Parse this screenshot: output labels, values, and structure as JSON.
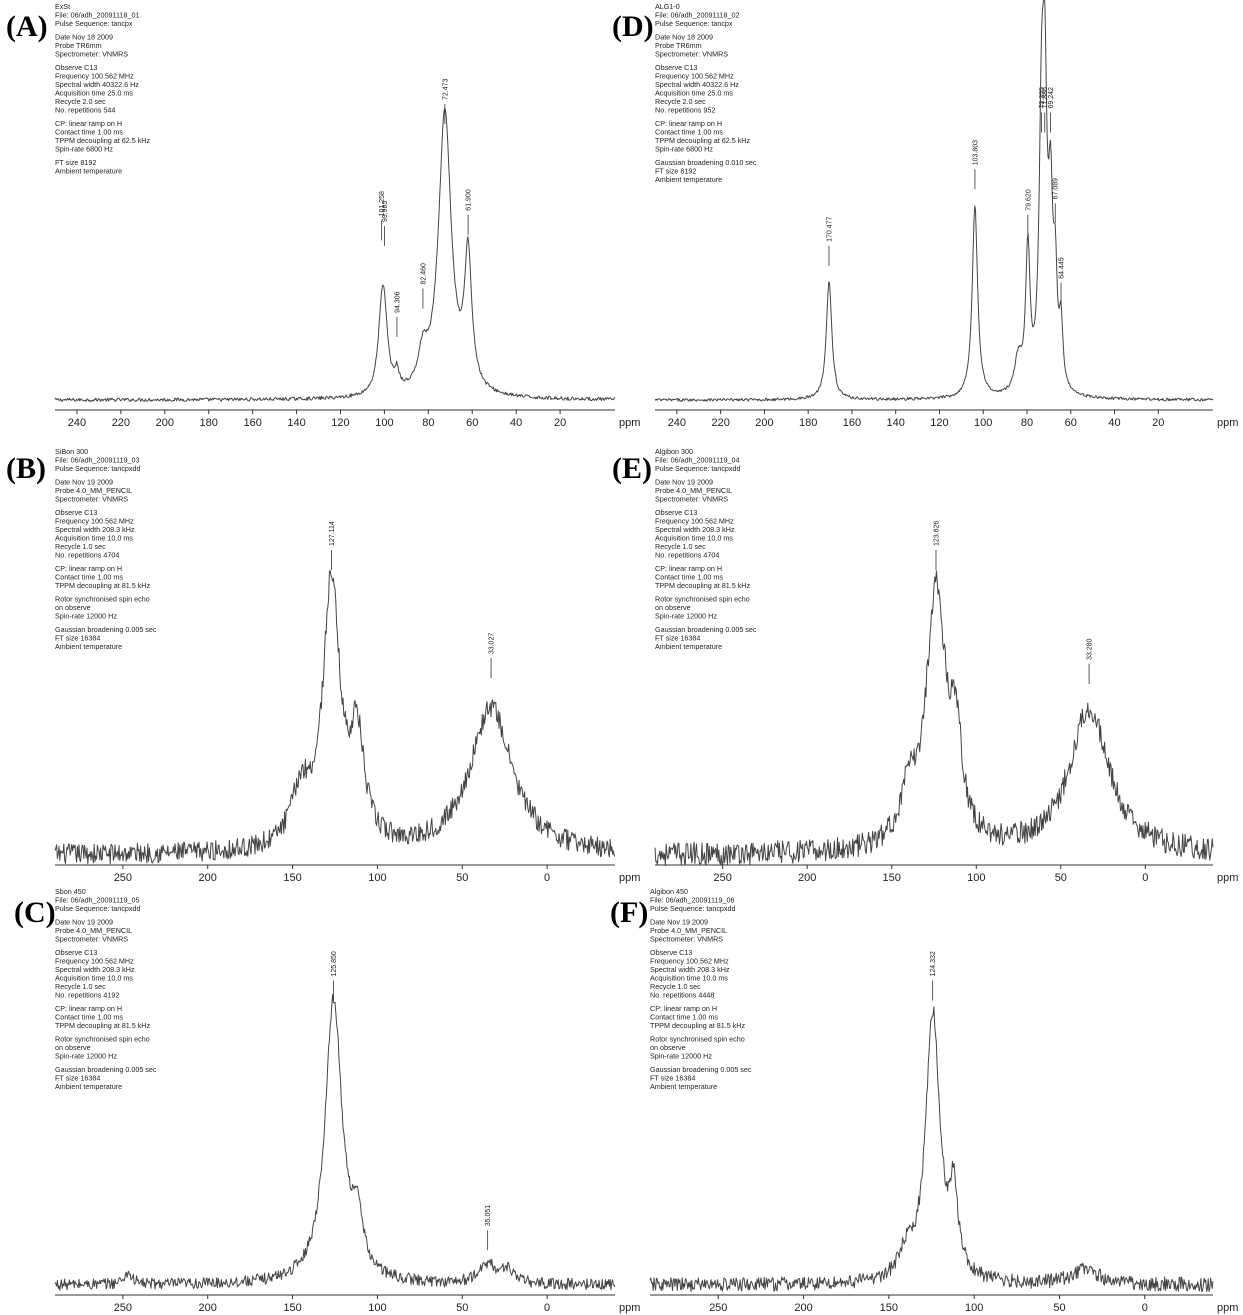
{
  "chart_data": [
    {
      "panel": "(A)",
      "type": "line",
      "header": [
        "ExSt",
        "File: 06/adh_20091118_01",
        "Pulse Sequence: tancpx",
        "",
        "Date  Nov 18 2009",
        "Probe  TR6mm",
        "Spectrometer: VNMRS",
        "",
        "Observe C13",
        "Frequency 100.562 MHz",
        "Spectral width 40322.6 Hz",
        "Acquisition time 25.0 ms",
        "Recycle 2.0 sec",
        "No. repetitions 544",
        "",
        "CP: linear ramp on H",
        "Contact time 1.00 ms",
        "TPPM decoupling at 62.5 kHz",
        "Spin-rate 6800 Hz",
        "",
        "FT size 8192",
        "Ambient temperature"
      ],
      "xlim": [
        250,
        -5
      ],
      "ticks": [
        240,
        220,
        200,
        180,
        160,
        140,
        120,
        100,
        80,
        60,
        40,
        20
      ],
      "tick_labels": [
        "240",
        "220",
        "200",
        "180",
        "160",
        "140",
        "120",
        "100",
        "80",
        "60",
        "40",
        "20"
      ],
      "unit_label": "ppm",
      "noise": 0.006,
      "peaks": [
        {
          "x": 101.258,
          "h": 0.22,
          "w": 2.0
        },
        {
          "x": 99.985,
          "h": 0.2,
          "w": 2.0
        },
        {
          "x": 94.306,
          "h": 0.06,
          "w": 1.2
        },
        {
          "x": 82.46,
          "h": 0.12,
          "w": 2.5
        },
        {
          "x": 72.473,
          "h": 1.0,
          "w": 3.5
        },
        {
          "x": 61.9,
          "h": 0.47,
          "w": 2.0
        }
      ],
      "peak_labels": [
        "101.258",
        "99.985",
        "94.306",
        "82.460",
        "72.473",
        "61.900"
      ],
      "labeled_peaks": [
        101.258,
        99.985,
        94.306,
        82.46,
        72.473,
        61.9
      ],
      "label_heights": [
        0.64,
        0.62,
        0.3,
        0.4,
        1.05,
        0.66
      ]
    },
    {
      "panel": "(B)",
      "type": "line",
      "header": [
        "SiBon 300",
        "File: 06/adh_20091119_03",
        "Pulse Sequence: tancpxdd",
        "",
        "Date  Nov 19 2009",
        "Probe  4.0_MM_PENCIL",
        "Spectrometer: VNMRS",
        "",
        "Observe C13",
        "Frequency 100.562 MHz",
        "Spectral width 208.3 kHz",
        "Acquisition time 10.0 ms",
        "Recycle 1.0 sec",
        "No. repetitions 4704",
        "",
        "CP: linear ramp on H",
        "Contact time 1.00 ms",
        "TPPM decoupling at 81.5 kHz",
        "",
        "Rotor synchronised spin echo",
        "on observe",
        "Spin-rate 12000 Hz",
        "",
        "Gaussian broadening 0.005 sec",
        "FT size 16384",
        "Ambient temperature"
      ],
      "xlim": [
        290,
        -40
      ],
      "ticks": [
        250,
        200,
        150,
        100,
        50,
        0
      ],
      "tick_labels": [
        "250",
        "200",
        "150",
        "100",
        "50",
        "0"
      ],
      "unit_label": "ppm",
      "noise": 0.035,
      "peaks": [
        {
          "x": 127.1,
          "h": 0.9,
          "w": 6
        },
        {
          "x": 112,
          "h": 0.35,
          "w": 5
        },
        {
          "x": 145,
          "h": 0.18,
          "w": 7
        },
        {
          "x": 33.0,
          "h": 0.5,
          "w": 15
        }
      ],
      "peak_labels": [
        "127.114",
        "33.027"
      ],
      "labeled_peaks": [
        127.114,
        33.027
      ],
      "label_heights": [
        1.05,
        0.68
      ]
    },
    {
      "panel": "(C)",
      "type": "line",
      "header": [
        "Sbon 450",
        "File: 06/adh_20091119_05",
        "Pulse Sequence: tancpxdd",
        "",
        "Date  Nov 19 2009",
        "Probe  4.0_MM_PENCIL",
        "Spectrometer: VNMRS",
        "",
        "Observe C13",
        "Frequency 100.562 MHz",
        "Spectral width 208.3 kHz",
        "Acquisition time 10.0 ms",
        "Recycle 1.0 sec",
        "No. repetitions 4192",
        "",
        "CP: linear ramp on H",
        "Contact time 1.00 ms",
        "TPPM decoupling at 81.5 kHz",
        "",
        "Rotor synchronised spin echo",
        "on observe",
        "Spin-rate 12000 Hz",
        "",
        "Gaussian broadening 0.005 sec",
        "FT size 16384",
        "Ambient temperature"
      ],
      "xlim": [
        290,
        -40
      ],
      "ticks": [
        250,
        200,
        150,
        100,
        50,
        0
      ],
      "tick_labels": [
        "250",
        "200",
        "150",
        "100",
        "50",
        "0"
      ],
      "unit_label": "ppm",
      "noise": 0.02,
      "peaks": [
        {
          "x": 125.85,
          "h": 1.0,
          "w": 6
        },
        {
          "x": 112,
          "h": 0.18,
          "w": 4
        },
        {
          "x": 35.05,
          "h": 0.07,
          "w": 6
        },
        {
          "x": 23,
          "h": 0.05,
          "w": 4
        },
        {
          "x": 247,
          "h": 0.04,
          "w": 3
        }
      ],
      "peak_labels": [
        "125.850",
        "35.051"
      ],
      "labeled_peaks": [
        125.85,
        35.051
      ],
      "label_heights": [
        1.08,
        0.2
      ]
    },
    {
      "panel": "(D)",
      "type": "line",
      "header": [
        "ALG1-0",
        "File: 06/adh_20091118_02",
        "Pulse Sequence: tancpx",
        "",
        "Date  Nov 18 2009",
        "Probe  TR6mm",
        "Spectrometer: VNMRS",
        "",
        "Observe C13",
        "Frequency 100.562 MHz",
        "Spectral width 40322.6 Hz",
        "Acquisition time 25.0 ms",
        "Recycle 2.0 sec",
        "No. repetitions 952",
        "",
        "CP: linear ramp on H",
        "Contact time 1.00 ms",
        "TPPM decoupling at 62.5 kHz",
        "Spin-rate 6800 Hz",
        "",
        "Gaussian broadening 0.010 sec",
        "FT size 8192",
        "Ambient temperature"
      ],
      "xlim": [
        250,
        -5
      ],
      "ticks": [
        240,
        220,
        200,
        180,
        160,
        140,
        120,
        100,
        80,
        60,
        40,
        20
      ],
      "tick_labels": [
        "240",
        "220",
        "200",
        "180",
        "160",
        "140",
        "120",
        "100",
        "80",
        "60",
        "40",
        "20"
      ],
      "unit_label": "ppm",
      "noise": 0.005,
      "peaks": [
        {
          "x": 170.477,
          "h": 0.42,
          "w": 1.5
        },
        {
          "x": 103.803,
          "h": 0.68,
          "w": 1.5
        },
        {
          "x": 84,
          "h": 0.12,
          "w": 2
        },
        {
          "x": 79.62,
          "h": 0.5,
          "w": 1.2
        },
        {
          "x": 73.355,
          "h": 0.85,
          "w": 1.3
        },
        {
          "x": 71.886,
          "h": 0.9,
          "w": 1.2
        },
        {
          "x": 69.242,
          "h": 0.6,
          "w": 1.2
        },
        {
          "x": 67.089,
          "h": 0.35,
          "w": 1.0
        },
        {
          "x": 64.445,
          "h": 0.22,
          "w": 1.0
        }
      ],
      "peak_labels": [
        "170.477",
        "103.803",
        "79.620",
        "73.355",
        "71.886",
        "69.242",
        "67.089",
        "64.445"
      ],
      "labeled_peaks": [
        170.477,
        103.803,
        79.62,
        73.355,
        71.886,
        69.242,
        67.089,
        64.445
      ],
      "label_heights": [
        0.55,
        0.82,
        0.66,
        1.02,
        1.02,
        1.02,
        0.7,
        0.42
      ]
    },
    {
      "panel": "(E)",
      "type": "line",
      "header": [
        "Algibon 300",
        "File: 06/adh_20091119_04",
        "Pulse Sequence: tancpxdd",
        "",
        "Date  Nov 19 2009",
        "Probe  4.0_MM_PENCIL",
        "Spectrometer: VNMRS",
        "",
        "Observe C13",
        "Frequency 100.562 MHz",
        "Spectral width 208.3 kHz",
        "Acquisition time 10.0 ms",
        "Recycle 1.0 sec",
        "No. repetitions 4704",
        "",
        "CP: linear ramp on H",
        "Contact time 1.00 ms",
        "TPPM decoupling at 81.5 kHz",
        "",
        "Rotor synchronised spin echo",
        "on observe",
        "Spin-rate 12000 Hz",
        "",
        "Gaussian broadening 0.005 sec",
        "FT size 16384",
        "Ambient temperature"
      ],
      "xlim": [
        290,
        -40
      ],
      "ticks": [
        250,
        200,
        150,
        100,
        50,
        0
      ],
      "tick_labels": [
        "250",
        "200",
        "150",
        "100",
        "50",
        "0"
      ],
      "unit_label": "ppm",
      "noise": 0.04,
      "peaks": [
        {
          "x": 123.8,
          "h": 0.88,
          "w": 7
        },
        {
          "x": 112,
          "h": 0.32,
          "w": 4
        },
        {
          "x": 140,
          "h": 0.15,
          "w": 6
        },
        {
          "x": 33.3,
          "h": 0.5,
          "w": 14
        }
      ],
      "peak_labels": [
        "123.826",
        "33.280"
      ],
      "labeled_peaks": [
        123.826,
        33.28
      ],
      "label_heights": [
        1.05,
        0.66
      ]
    },
    {
      "panel": "(F)",
      "type": "line",
      "header": [
        "Algibon 450",
        "File: 06/adh_20091119_06",
        "Pulse Sequence: tancpxdd",
        "",
        "Date  Nov 19 2009",
        "Probe  4.0_MM_PENCIL",
        "Spectrometer: VNMRS",
        "",
        "Observe C13",
        "Frequency 100.562 MHz",
        "Spectral width 208.3 kHz",
        "Acquisition time 10.0 ms",
        "Recycle 1.0 sec",
        "No. repetitions 4448",
        "",
        "CP: linear ramp on H",
        "Contact time 1.00 ms",
        "TPPM decoupling at 81.5 kHz",
        "",
        "Rotor synchronised spin echo",
        "on observe",
        "Spin-rate 12000 Hz",
        "",
        "Gaussian broadening 0.005 sec",
        "FT size 16384",
        "Ambient temperature"
      ],
      "xlim": [
        290,
        -40
      ],
      "ticks": [
        250,
        200,
        150,
        100,
        50,
        0
      ],
      "tick_labels": [
        "250",
        "200",
        "150",
        "100",
        "50",
        "0"
      ],
      "unit_label": "ppm",
      "noise": 0.025,
      "peaks": [
        {
          "x": 124.3,
          "h": 0.95,
          "w": 5
        },
        {
          "x": 112,
          "h": 0.28,
          "w": 3
        },
        {
          "x": 140,
          "h": 0.08,
          "w": 5
        },
        {
          "x": 35,
          "h": 0.05,
          "w": 10
        }
      ],
      "peak_labels": [
        "124.332"
      ],
      "labeled_peaks": [
        124.332
      ],
      "label_heights": [
        1.08
      ]
    }
  ]
}
